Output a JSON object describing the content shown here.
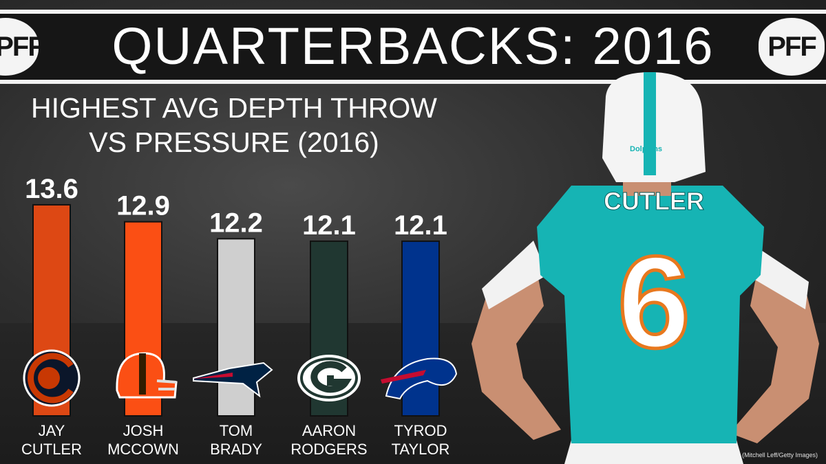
{
  "header": {
    "title": "QUARTERBACKS: 2016",
    "logo_text": "PFF"
  },
  "chart_data": {
    "type": "bar",
    "title": "HIGHEST AVG DEPTH THROW VS PRESSURE (2016)",
    "title_lines": [
      "HIGHEST AVG DEPTH THROW",
      "VS PRESSURE (2016)"
    ],
    "categories": [
      "JAY CUTLER",
      "JOSH MCCOWN",
      "TOM BRADY",
      "AARON RODGERS",
      "TYROD TAYLOR"
    ],
    "category_lines": [
      [
        "JAY",
        "CUTLER"
      ],
      [
        "JOSH",
        "MCCOWN"
      ],
      [
        "TOM",
        "BRADY"
      ],
      [
        "AARON",
        "RODGERS"
      ],
      [
        "TYROD",
        "TAYLOR"
      ]
    ],
    "values": [
      13.6,
      12.9,
      12.2,
      12.1,
      12.1
    ],
    "data_labels": [
      "13.6",
      "12.9",
      "12.2",
      "12.1",
      "12.1"
    ],
    "colors": [
      "#dd4814",
      "#fb4f14",
      "#cfcfcf",
      "#203731",
      "#00338d"
    ],
    "team_icons": [
      "bears-logo-icon",
      "browns-helmet-icon",
      "patriots-logo-icon",
      "packers-logo-icon",
      "bills-logo-icon"
    ],
    "xlabel": "",
    "ylabel": "",
    "grid": false,
    "legend": "none"
  },
  "player": {
    "jersey_name": "CUTLER",
    "jersey_number": "6",
    "helmet_text": "Dolphins",
    "jersey_color": "#16b4b4"
  },
  "credit": "(Mitchell Leff/Getty Images)"
}
